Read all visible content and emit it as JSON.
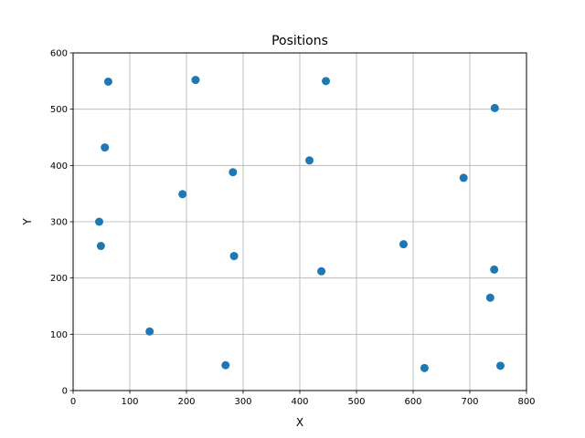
{
  "chart_data": {
    "type": "scatter",
    "title": "Positions",
    "xlabel": "X",
    "ylabel": "Y",
    "xlim": [
      0,
      800
    ],
    "ylim": [
      0,
      600
    ],
    "xticks": [
      0,
      100,
      200,
      300,
      400,
      500,
      600,
      700,
      800
    ],
    "yticks": [
      0,
      100,
      200,
      300,
      400,
      500,
      600
    ],
    "grid": true,
    "colors": {
      "point": "#1f77b4",
      "grid": "#b0b0b0",
      "axis": "#000000"
    },
    "series": [
      {
        "points": [
          {
            "x": 62,
            "y": 549
          },
          {
            "x": 216,
            "y": 552
          },
          {
            "x": 446,
            "y": 550
          },
          {
            "x": 744,
            "y": 502
          },
          {
            "x": 56,
            "y": 432
          },
          {
            "x": 282,
            "y": 388
          },
          {
            "x": 417,
            "y": 409
          },
          {
            "x": 689,
            "y": 378
          },
          {
            "x": 193,
            "y": 349
          },
          {
            "x": 46,
            "y": 300
          },
          {
            "x": 49,
            "y": 257
          },
          {
            "x": 284,
            "y": 239
          },
          {
            "x": 583,
            "y": 260
          },
          {
            "x": 438,
            "y": 212
          },
          {
            "x": 743,
            "y": 215
          },
          {
            "x": 736,
            "y": 165
          },
          {
            "x": 135,
            "y": 105
          },
          {
            "x": 269,
            "y": 45
          },
          {
            "x": 620,
            "y": 40
          },
          {
            "x": 754,
            "y": 44
          }
        ]
      }
    ]
  }
}
